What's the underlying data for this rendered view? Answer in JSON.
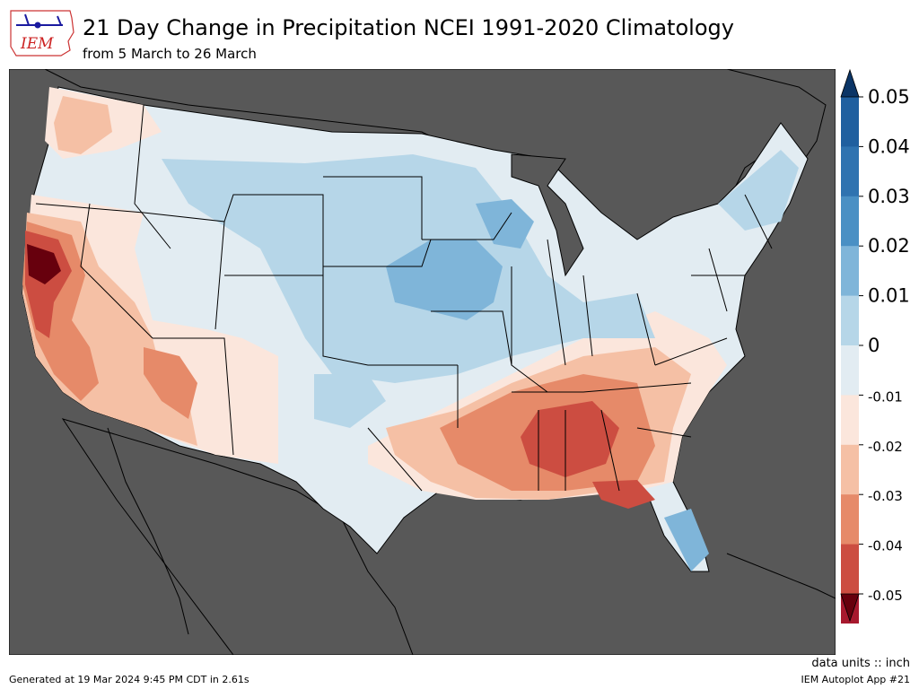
{
  "header": {
    "logo_text": "IEM",
    "title": "21 Day Change in Precipitation NCEI 1991-2020 Climatology",
    "subtitle": "from 5 March to 26 March"
  },
  "colorbar": {
    "ticks": [
      "0.05",
      "0.04",
      "0.03",
      "0.02",
      "0.01",
      "0",
      "-0.01",
      "-0.02",
      "-0.03",
      "-0.04",
      "-0.05"
    ],
    "colors": [
      "#1f5f9f",
      "#2f73b0",
      "#4a90c4",
      "#7fb5d9",
      "#b6d6e8",
      "#e2ecf2",
      "#fbe6dc",
      "#f5c0a5",
      "#e68a69",
      "#cc4d41",
      "#a7192e"
    ],
    "extend_high_color": "#0b3566",
    "extend_low_color": "#67000d"
  },
  "map": {
    "ocean_color": "#585858",
    "region": "CONUS"
  },
  "footer": {
    "generated": "Generated at 19 Mar 2024 9:45 PM CDT in 2.61s",
    "units": "data units :: inch",
    "app": "IEM Autoplot App #21"
  }
}
